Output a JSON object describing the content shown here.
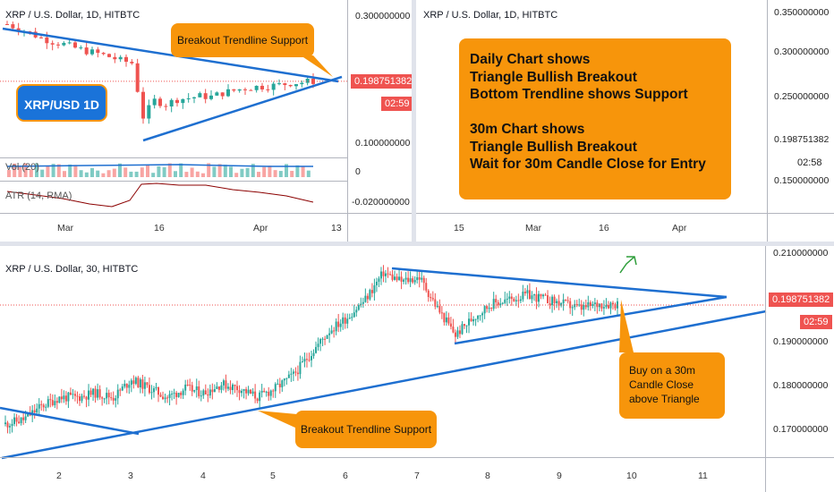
{
  "panels": {
    "daily": {
      "title": "XRP / U.S. Dollar, 1D, HITBTC",
      "y_ticks": [
        "0.300000000",
        "0.100000000",
        "0",
        "-0.020000000"
      ],
      "price_badge": "0.198751382",
      "timer_badge": "02:59",
      "x_ticks": [
        "Mar",
        "16",
        "Apr",
        "13"
      ],
      "vol_label": "Vol (20)",
      "atr_label": "ATR (14, RMA)",
      "pair_badge": "XRP/USD 1D",
      "callout": "Breakout Trendline Support"
    },
    "daily_right": {
      "title": "XRP / U.S. Dollar, 1D, HITBTC",
      "y_ticks": [
        "0.350000000",
        "0.300000000",
        "0.250000000",
        "0.198751382",
        "0.150000000"
      ],
      "timer_text": "02:58",
      "x_ticks": [
        "15",
        "Mar",
        "16",
        "Apr"
      ],
      "note_lines": [
        "Daily Chart shows",
        "Triangle Bullish Breakout",
        "Bottom Trendline shows Support",
        "",
        "30m Chart shows",
        "Triangle Bullish Breakout",
        "Wait for 30m Candle Close for Entry"
      ]
    },
    "m30": {
      "title": "XRP / U.S. Dollar, 30, HITBTC",
      "y_ticks": [
        "0.210000000",
        "0.190000000",
        "0.180000000",
        "0.170000000"
      ],
      "price_badge": "0.198751382",
      "timer_badge": "02:59",
      "x_ticks": [
        "2",
        "3",
        "4",
        "5",
        "6",
        "7",
        "8",
        "9",
        "10",
        "11"
      ],
      "callout_support": "Breakout Trendline Support",
      "callout_buy": [
        "Buy on a 30m",
        "Candle Close",
        "above Triangle"
      ]
    }
  },
  "colors": {
    "up": "#26a69a",
    "down": "#ef5350",
    "trendline": "#1e6fd0",
    "callout": "#f7950b",
    "pair_badge": "#1a73d9",
    "atr": "#8b0000",
    "arrow": "#2e9e3a"
  },
  "chart_data": [
    {
      "type": "line",
      "panel": "daily",
      "title": "XRP / U.S. Dollar, 1D, HITBTC",
      "x_ticks": [
        "Mar",
        "16",
        "Apr",
        "13"
      ],
      "y_ticks": [
        0.3,
        0.1
      ],
      "series": [
        {
          "name": "",
          "values": [
            0.29,
            0.283,
            0.276,
            0.268,
            0.262,
            0.258,
            0.252,
            0.247,
            0.243,
            0.238,
            0.232,
            0.228,
            0.142,
            0.168,
            0.162,
            0.17,
            0.172,
            0.175,
            0.174,
            0.18,
            0.184,
            0.188,
            0.19,
            0.191,
            0.193,
            0.196,
            0.197,
            0.199
          ]
        }
      ],
      "last_price": 0.198751382
    },
    {
      "type": "line",
      "panel": "m30",
      "title": "XRP / U.S. Dollar, 30, HITBTC",
      "x_ticks": [
        "2",
        "3",
        "4",
        "5",
        "6",
        "7",
        "8",
        "9",
        "10",
        "11"
      ],
      "y_ticks": [
        0.21,
        0.19,
        0.18,
        0.17
      ],
      "series": [
        {
          "name": "",
          "values": [
            0.172,
            0.173,
            0.176,
            0.178,
            0.178,
            0.179,
            0.178,
            0.182,
            0.18,
            0.178,
            0.18,
            0.179,
            0.181,
            0.18,
            0.178,
            0.18,
            0.183,
            0.188,
            0.193,
            0.196,
            0.2,
            0.206,
            0.204,
            0.205,
            0.198,
            0.192,
            0.196,
            0.199,
            0.2,
            0.201,
            0.2,
            0.199,
            0.198,
            0.199,
            0.199
          ]
        }
      ],
      "last_price": 0.198751382
    }
  ]
}
